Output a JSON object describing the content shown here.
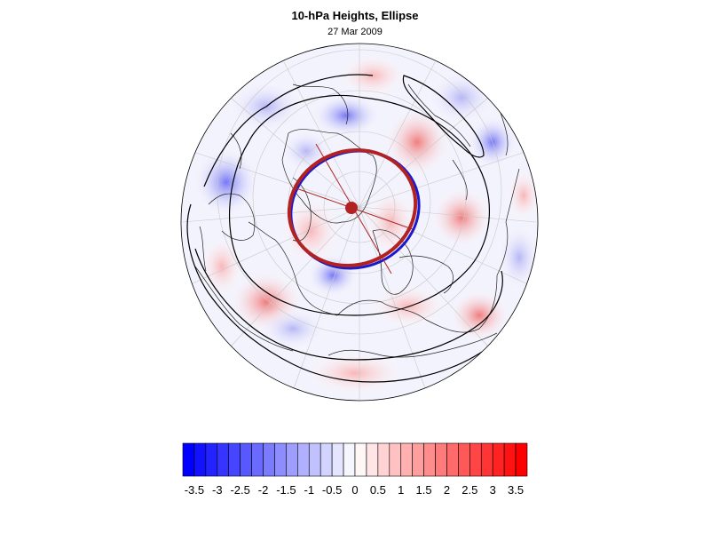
{
  "header": {
    "title": "10-hPa Heights, Ellipse",
    "subtitle": "27 Mar 2009"
  },
  "map": {
    "projection": "orthographic-polar",
    "field": "10-hPa height anomaly",
    "ellipse_color": "#b22222",
    "ellipse_inner_color": "#1a1acc",
    "contour_color": "#000000",
    "gridline_color": "#c8c8c8",
    "coastline_color": "#222222"
  },
  "colorbar": {
    "levels": [
      -3.75,
      -3.5,
      -3.25,
      -3,
      -2.75,
      -2.5,
      -2.25,
      -2,
      -1.75,
      -1.5,
      -1.25,
      -1,
      -0.75,
      -0.5,
      -0.25,
      0,
      0.25,
      0.5,
      0.75,
      1,
      1.25,
      1.5,
      1.75,
      2,
      2.25,
      2.5,
      2.75,
      3,
      3.25,
      3.5,
      3.75
    ],
    "tick_labels": [
      "-3.5",
      "-3",
      "-2.5",
      "-2",
      "-1.5",
      "-1",
      "-0.5",
      "0",
      "0.5",
      "1",
      "1.5",
      "2",
      "2.5",
      "3",
      "3.5"
    ],
    "negative_color": "#0000ff",
    "positive_color": "#ff0000",
    "neutral_color": "#ffffff"
  }
}
